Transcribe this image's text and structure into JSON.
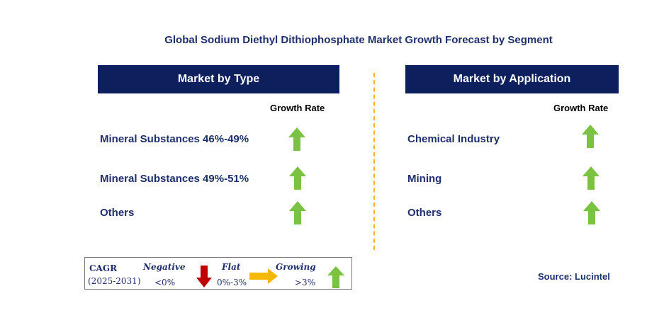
{
  "title": "Global Sodium Diethyl Dithiophosphate Market Growth Forecast by Segment",
  "left_panel": {
    "header": "Market by Type",
    "growth_rate_label": "Growth Rate",
    "rows": [
      {
        "label": "Mineral Substances 46%-49%",
        "trend": "growing"
      },
      {
        "label": "Mineral Substances 49%-51%",
        "trend": "growing"
      },
      {
        "label": "Others",
        "trend": "growing"
      }
    ]
  },
  "right_panel": {
    "header": "Market by Application",
    "growth_rate_label": "Growth Rate",
    "rows": [
      {
        "label": "Chemical Industry",
        "trend": "growing"
      },
      {
        "label": "Mining",
        "trend": "growing"
      },
      {
        "label": "Others",
        "trend": "growing"
      }
    ]
  },
  "legend": {
    "cagr_label": "CAGR",
    "period": "(2025-2031)",
    "negative_label": "Negative",
    "negative_range": "<0%",
    "flat_label": "Flat",
    "flat_range": "0%-3%",
    "growing_label": "Growing",
    "growing_range": ">3%"
  },
  "source": "Source: Lucintel",
  "colors": {
    "header_bg": "#0d1f5c",
    "text_navy": "#1f2f6b",
    "growing_arrow": "#7cc242",
    "negative_arrow": "#c00000",
    "flat_arrow": "#f5b800",
    "divider": "#f2b233"
  },
  "icons": {
    "growing": "green-up-arrow-icon",
    "negative": "red-down-arrow-icon",
    "flat": "yellow-right-arrow-icon"
  }
}
